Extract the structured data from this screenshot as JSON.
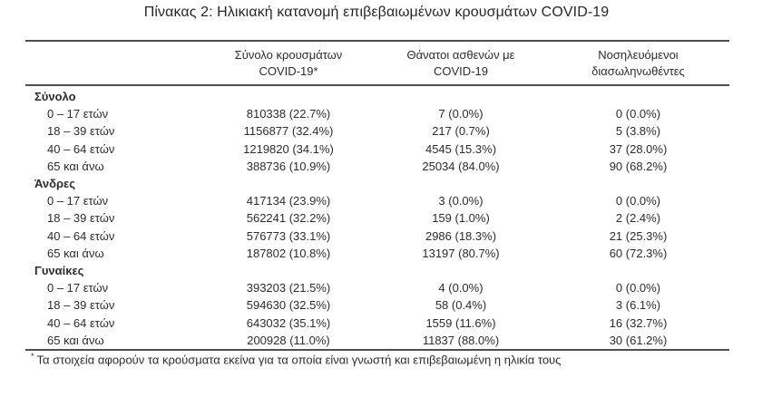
{
  "title": "Πίνακας 2: Ηλικιακή κατανομή επιβεβαιωμένων κρουσμάτων COVID-19",
  "table": {
    "header": {
      "cases_line1": "Σύνολο κρουσμάτων",
      "cases_line2": "COVID-19*",
      "deaths_line1": "Θάνατοι ασθενών με",
      "deaths_line2": "COVID-19",
      "intubated_line1": "Νοσηλευόμενοι",
      "intubated_line2": "διασωληνωθέντες"
    },
    "sections": [
      {
        "label": "Σύνολο",
        "rows": [
          {
            "age": "0 – 17 ετών",
            "cases": "810338 (22.7%)",
            "deaths": "7 (0.0%)",
            "intubated": "0 (0.0%)"
          },
          {
            "age": "18 – 39 ετών",
            "cases": "1156877 (32.4%)",
            "deaths": "217 (0.7%)",
            "intubated": "5 (3.8%)"
          },
          {
            "age": "40 – 64 ετών",
            "cases": "1219820 (34.1%)",
            "deaths": "4545 (15.3%)",
            "intubated": "37 (28.0%)"
          },
          {
            "age": "65 και άνω",
            "cases": "388736 (10.9%)",
            "deaths": "25034 (84.0%)",
            "intubated": "90 (68.2%)"
          }
        ]
      },
      {
        "label": "Άνδρες",
        "rows": [
          {
            "age": "0 – 17 ετών",
            "cases": "417134 (23.9%)",
            "deaths": "3 (0.0%)",
            "intubated": "0 (0.0%)"
          },
          {
            "age": "18 – 39 ετών",
            "cases": "562241 (32.2%)",
            "deaths": "159 (1.0%)",
            "intubated": "2 (2.4%)"
          },
          {
            "age": "40 – 64 ετών",
            "cases": "576773 (33.1%)",
            "deaths": "2986 (18.3%)",
            "intubated": "21 (25.3%)"
          },
          {
            "age": "65 και άνω",
            "cases": "187802 (10.8%)",
            "deaths": "13197 (80.7%)",
            "intubated": "60 (72.3%)"
          }
        ]
      },
      {
        "label": "Γυναίκες",
        "rows": [
          {
            "age": "0 – 17 ετών",
            "cases": "393203 (21.5%)",
            "deaths": "4 (0.0%)",
            "intubated": "0 (0.0%)"
          },
          {
            "age": "18 – 39 ετών",
            "cases": "594630 (32.5%)",
            "deaths": "58 (0.4%)",
            "intubated": "3 (6.1%)"
          },
          {
            "age": "40 – 64 ετών",
            "cases": "643032 (35.1%)",
            "deaths": "1559 (11.6%)",
            "intubated": "16 (32.7%)"
          },
          {
            "age": "65 και άνω",
            "cases": "200928 (11.0%)",
            "deaths": "11837 (88.0%)",
            "intubated": "30 (61.2%)"
          }
        ]
      }
    ],
    "footnote_marker": "*",
    "footnote": "Τα στοιχεία αφορούν τα κρούσματα εκείνα για τα οποία είναι γνωστή και επιβεβαιωμένη η ηλικία τους"
  }
}
